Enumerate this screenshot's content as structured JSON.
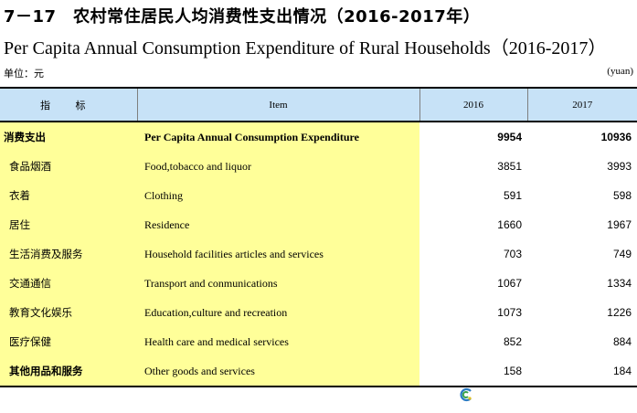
{
  "title_cn": "7－17　农村常住居民人均消费性支出情况（2016-2017年）",
  "title_en": "Per Capita Annual Consumption Expenditure  of Rural Households（2016-2017）",
  "unit_cn": "单位：元",
  "unit_en": "(yuan)",
  "table": {
    "headers": [
      "指 标",
      "Item",
      "2016",
      "2017"
    ],
    "rows": [
      {
        "cn": "消费支出",
        "en": "Per Capita Annual Consumption Expenditure",
        "v2016": "9954",
        "v2017": "10936"
      },
      {
        "cn": "食品烟酒",
        "en": "Food,tobacco and liquor",
        "v2016": "3851",
        "v2017": "3993"
      },
      {
        "cn": "衣着",
        "en": "Clothing",
        "v2016": "591",
        "v2017": "598"
      },
      {
        "cn": "居住",
        "en": "Residence",
        "v2016": "1660",
        "v2017": "1967"
      },
      {
        "cn": "生活消费及服务",
        "en": "Household facilities articles and services",
        "v2016": "703",
        "v2017": "749"
      },
      {
        "cn": "交通通信",
        "en": "Transport and conmunications",
        "v2016": "1067",
        "v2017": "1334"
      },
      {
        "cn": "教育文化娱乐",
        "en": "Education,culture and recreation",
        "v2016": "1073",
        "v2017": "1226"
      },
      {
        "cn": "医疗保健",
        "en": "Health care and medical services",
        "v2016": "852",
        "v2017": "884"
      },
      {
        "cn": "其他用品和服务",
        "en": "Other goods and services",
        "v2016": "158",
        "v2017": "184"
      }
    ]
  },
  "colors": {
    "header_bg": "#c7e2f7",
    "label_bg": "#ffff99"
  },
  "icons": {
    "footer": "logo-icon"
  }
}
